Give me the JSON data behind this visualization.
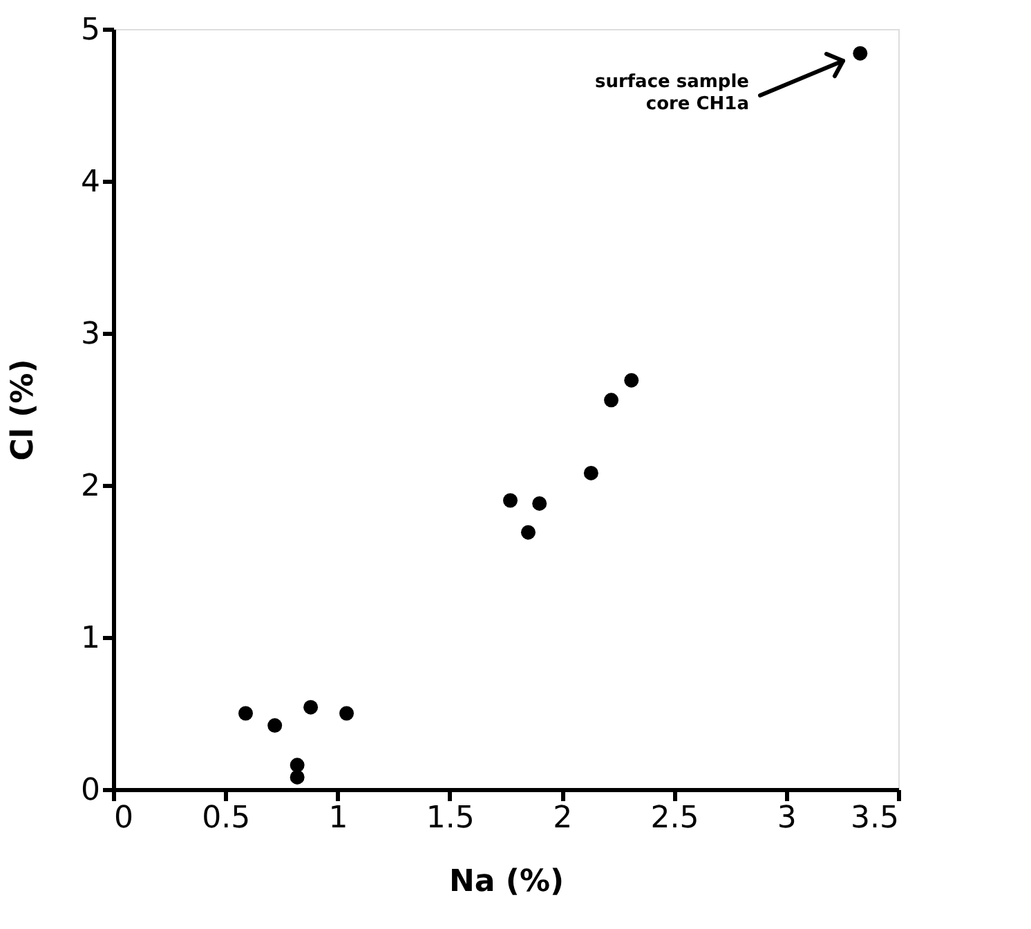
{
  "chart_data": {
    "type": "scatter",
    "xlabel": "Na (%)",
    "ylabel": "Cl (%)",
    "x": [
      0.59,
      0.72,
      0.88,
      1.04,
      0.82,
      0.82,
      1.77,
      1.9,
      1.85,
      2.13,
      2.22,
      2.31,
      3.33
    ],
    "series": [
      {
        "color": "#000000",
        "values": [
          0.5,
          0.42,
          0.54,
          0.5,
          0.16,
          0.08,
          1.9,
          1.88,
          1.69,
          2.08,
          2.56,
          2.69,
          4.84
        ]
      }
    ],
    "xlim": [
      0,
      3.5
    ],
    "ylim": [
      0,
      5
    ],
    "xticks": [
      0,
      0.5,
      1,
      1.5,
      2,
      2.5,
      3,
      3.5
    ],
    "yticks": [
      0,
      1,
      2,
      3,
      4,
      5
    ],
    "grid": false,
    "legend": false,
    "marker": "circle",
    "annotations": [
      "surface sample\ncore CH1a"
    ]
  }
}
